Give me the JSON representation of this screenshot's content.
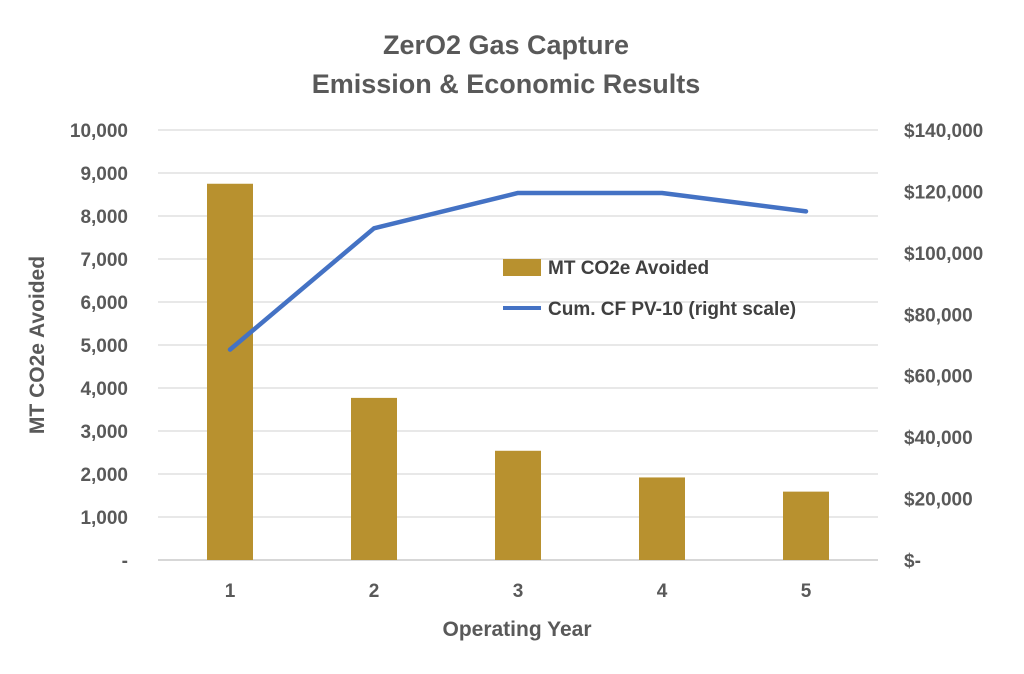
{
  "chart_data": {
    "type": "bar",
    "title": [
      "ZerO2 Gas Capture",
      "Emission & Economic Results"
    ],
    "xlabel": "Operating Year",
    "ylabel": "MT CO2e Avoided",
    "categories": [
      "1",
      "2",
      "3",
      "4",
      "5"
    ],
    "ylim": [
      0,
      10000
    ],
    "y_ticks": [
      0,
      1000,
      2000,
      3000,
      4000,
      5000,
      6000,
      7000,
      8000,
      9000,
      10000
    ],
    "y_tick_labels": [
      "-",
      "1,000",
      "2,000",
      "3,000",
      "4,000",
      "5,000",
      "6,000",
      "7,000",
      "8,000",
      "9,000",
      "10,000"
    ],
    "y2lim": [
      0,
      140000
    ],
    "y2_ticks": [
      0,
      20000,
      40000,
      60000,
      80000,
      100000,
      120000,
      140000
    ],
    "y2_tick_labels": [
      "$-",
      "$20,000",
      "$40,000",
      "$60,000",
      "$80,000",
      "$100,000",
      "$120,000",
      "$140,000"
    ],
    "grid": true,
    "legend_position": "center-right",
    "series": [
      {
        "name": "MT CO2e Avoided",
        "type": "bar",
        "axis": "left",
        "color": "#B8912F",
        "values": [
          8750,
          3770,
          2540,
          1920,
          1590
        ]
      },
      {
        "name": "Cum. CF PV-10 (right scale)",
        "type": "line",
        "axis": "right",
        "color": "#4472C4",
        "values": [
          68500,
          108000,
          119500,
          119500,
          113500
        ]
      }
    ]
  }
}
